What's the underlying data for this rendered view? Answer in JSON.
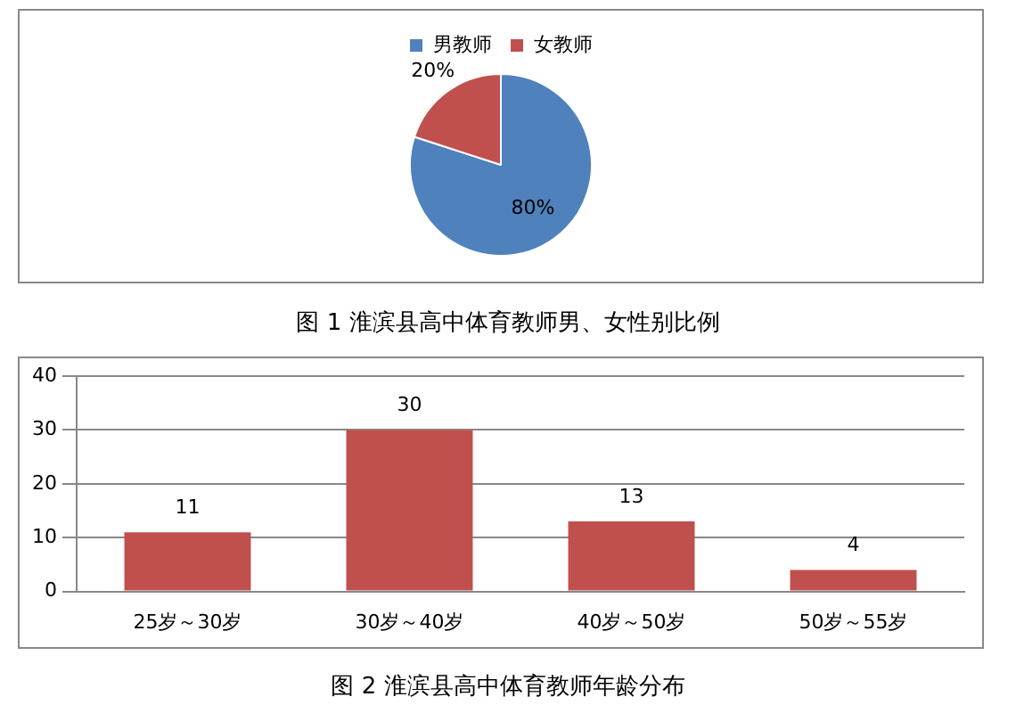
{
  "chart_data": [
    {
      "type": "pie",
      "categories": [
        "男教师",
        "女教师"
      ],
      "values": [
        80,
        20
      ],
      "colors": [
        "#4f81bd",
        "#c0504d"
      ],
      "value_labels": [
        "80%",
        "20%"
      ],
      "legend": "top",
      "annotations": [
        "图 1 淮滨县高中体育教师男、女性别比例"
      ]
    },
    {
      "type": "bar",
      "categories": [
        "25岁～30岁",
        "30岁～40岁",
        "40岁～50岁",
        "50岁～55岁"
      ],
      "values": [
        11,
        30,
        13,
        4
      ],
      "color": "#c0504d",
      "ylim": [
        0,
        40
      ],
      "yticks": [
        0,
        10,
        20,
        30,
        40
      ],
      "grid": "y",
      "data_labels": true,
      "annotations": [
        "图 2 淮滨县高中体育教师年龄分布"
      ]
    }
  ]
}
